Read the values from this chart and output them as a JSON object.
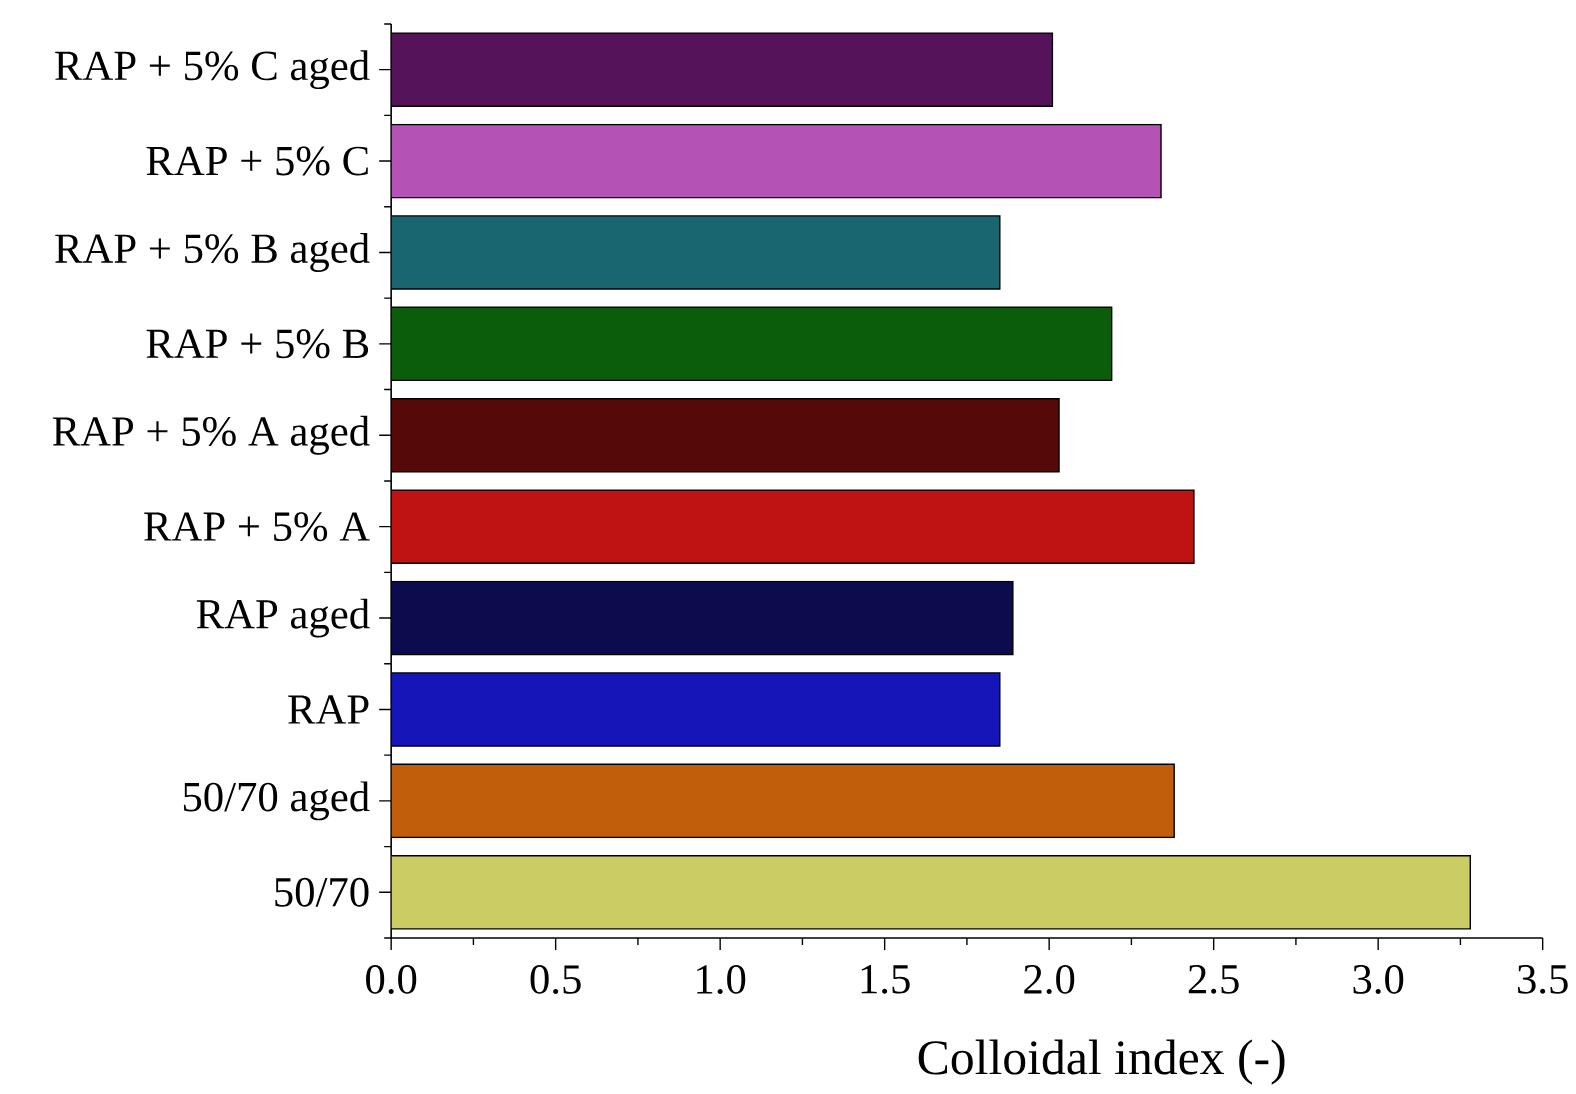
{
  "chart_data": {
    "type": "bar",
    "orientation": "horizontal",
    "xlabel": "Colloidal index (-)",
    "categories": [
      "RAP + 5% C aged",
      "RAP + 5% C",
      "RAP + 5% B aged",
      "RAP + 5% B",
      "RAP + 5% A aged",
      "RAP + 5% A",
      "RAP aged",
      "RAP",
      "50/70 aged",
      "50/70"
    ],
    "values": [
      2.01,
      2.34,
      1.85,
      2.19,
      2.03,
      2.44,
      1.89,
      1.85,
      2.38,
      3.28
    ],
    "colors": [
      "#55145a",
      "#b552b5",
      "#1a6670",
      "#0b5c0b",
      "#560909",
      "#bf1212",
      "#0b0b4e",
      "#1616b8",
      "#c05e0c",
      "#cccc64"
    ],
    "xlim": [
      0,
      3.5
    ],
    "xticks": [
      {
        "value": 0,
        "label": "0.0"
      },
      {
        "value": 0.5,
        "label": "0.5"
      },
      {
        "value": 1,
        "label": "1.0"
      },
      {
        "value": 1.5,
        "label": "1.5"
      },
      {
        "value": 2,
        "label": "2.0"
      },
      {
        "value": 2.5,
        "label": "2.5"
      },
      {
        "value": 3,
        "label": "3.0"
      },
      {
        "value": 3.5,
        "label": "3.5"
      }
    ]
  }
}
